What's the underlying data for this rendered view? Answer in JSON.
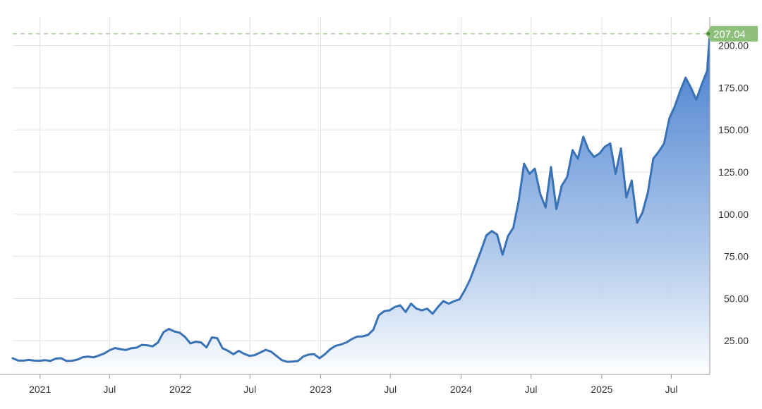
{
  "chart_data": {
    "type": "area",
    "title": "",
    "xlabel": "",
    "ylabel": "",
    "ylim": [
      5,
      217
    ],
    "y_ticks": [
      "25.00",
      "50.00",
      "75.00",
      "100.00",
      "125.00",
      "150.00",
      "175.00",
      "200.00"
    ],
    "y_tick_values": [
      25,
      50,
      75,
      100,
      125,
      150,
      175,
      200
    ],
    "x_ticks": [
      {
        "label": "2021",
        "date": "2021-01-01"
      },
      {
        "label": "Jul",
        "date": "2021-07-01"
      },
      {
        "label": "2022",
        "date": "2022-01-01"
      },
      {
        "label": "Jul",
        "date": "2022-07-01"
      },
      {
        "label": "2023",
        "date": "2023-01-01"
      },
      {
        "label": "Jul",
        "date": "2023-07-01"
      },
      {
        "label": "2024",
        "date": "2024-01-01"
      },
      {
        "label": "Jul",
        "date": "2024-07-01"
      },
      {
        "label": "2025",
        "date": "2025-01-01"
      },
      {
        "label": "Jul",
        "date": "2025-07-01"
      }
    ],
    "x_range": [
      "2020-10-22",
      "2025-10-09"
    ],
    "grid": true,
    "last_value_label": "207.04",
    "last_value": 207.04,
    "colors": {
      "line": "#3a72b6",
      "area_top": "#3f78cd",
      "area_bottom": "#ffffff",
      "marker": "#8ec07c",
      "reference_line": "#a8d49a",
      "grid": "#e3e3e3",
      "axis": "#999999",
      "tick_text": "#333333"
    },
    "series": [
      {
        "values": [
          [
            "2020-10-22",
            14.6
          ],
          [
            "2020-11-05",
            13.3
          ],
          [
            "2020-11-19",
            13.2
          ],
          [
            "2020-12-03",
            13.6
          ],
          [
            "2020-12-17",
            13.2
          ],
          [
            "2020-12-31",
            13.1
          ],
          [
            "2021-01-14",
            13.5
          ],
          [
            "2021-01-28",
            13.0
          ],
          [
            "2021-02-11",
            14.4
          ],
          [
            "2021-02-25",
            14.6
          ],
          [
            "2021-03-11",
            13.0
          ],
          [
            "2021-03-25",
            13.1
          ],
          [
            "2021-04-08",
            13.8
          ],
          [
            "2021-04-22",
            15.2
          ],
          [
            "2021-05-06",
            15.6
          ],
          [
            "2021-05-20",
            15.1
          ],
          [
            "2021-06-03",
            16.2
          ],
          [
            "2021-06-17",
            17.4
          ],
          [
            "2021-07-01",
            19.4
          ],
          [
            "2021-07-15",
            20.7
          ],
          [
            "2021-07-29",
            20.0
          ],
          [
            "2021-08-12",
            19.5
          ],
          [
            "2021-08-26",
            20.5
          ],
          [
            "2021-09-09",
            20.9
          ],
          [
            "2021-09-23",
            22.5
          ],
          [
            "2021-10-07",
            22.3
          ],
          [
            "2021-10-21",
            21.7
          ],
          [
            "2021-11-04",
            24.0
          ],
          [
            "2021-11-18",
            30.0
          ],
          [
            "2021-12-02",
            32.0
          ],
          [
            "2021-12-16",
            30.5
          ],
          [
            "2021-12-30",
            29.8
          ],
          [
            "2022-01-13",
            27.3
          ],
          [
            "2022-01-27",
            23.4
          ],
          [
            "2022-02-10",
            24.4
          ],
          [
            "2022-02-24",
            24.0
          ],
          [
            "2022-03-10",
            21.0
          ],
          [
            "2022-03-24",
            27.0
          ],
          [
            "2022-04-07",
            26.5
          ],
          [
            "2022-04-21",
            20.5
          ],
          [
            "2022-05-05",
            19.0
          ],
          [
            "2022-05-19",
            17.0
          ],
          [
            "2022-06-02",
            19.0
          ],
          [
            "2022-06-16",
            17.2
          ],
          [
            "2022-06-30",
            16.0
          ],
          [
            "2022-07-14",
            16.5
          ],
          [
            "2022-07-28",
            18.0
          ],
          [
            "2022-08-11",
            19.6
          ],
          [
            "2022-08-25",
            18.5
          ],
          [
            "2022-09-08",
            16.0
          ],
          [
            "2022-09-22",
            13.5
          ],
          [
            "2022-10-06",
            12.5
          ],
          [
            "2022-10-20",
            12.6
          ],
          [
            "2022-11-03",
            13.0
          ],
          [
            "2022-11-17",
            15.7
          ],
          [
            "2022-12-01",
            16.8
          ],
          [
            "2022-12-15",
            17.0
          ],
          [
            "2022-12-29",
            14.6
          ],
          [
            "2023-01-12",
            17.0
          ],
          [
            "2023-01-26",
            20.0
          ],
          [
            "2023-02-09",
            22.0
          ],
          [
            "2023-02-23",
            22.8
          ],
          [
            "2023-03-09",
            24.0
          ],
          [
            "2023-03-23",
            26.0
          ],
          [
            "2023-04-06",
            27.5
          ],
          [
            "2023-04-20",
            27.6
          ],
          [
            "2023-05-04",
            28.4
          ],
          [
            "2023-05-18",
            31.5
          ],
          [
            "2023-06-01",
            40.0
          ],
          [
            "2023-06-15",
            42.5
          ],
          [
            "2023-06-29",
            43.0
          ],
          [
            "2023-07-13",
            45.0
          ],
          [
            "2023-07-27",
            46.0
          ],
          [
            "2023-08-10",
            42.0
          ],
          [
            "2023-08-24",
            47.0
          ],
          [
            "2023-09-07",
            44.0
          ],
          [
            "2023-09-21",
            43.0
          ],
          [
            "2023-10-05",
            44.0
          ],
          [
            "2023-10-19",
            41.0
          ],
          [
            "2023-11-02",
            45.0
          ],
          [
            "2023-11-16",
            48.5
          ],
          [
            "2023-11-30",
            47.0
          ],
          [
            "2023-12-14",
            48.5
          ],
          [
            "2023-12-28",
            49.5
          ],
          [
            "2024-01-11",
            55.0
          ],
          [
            "2024-01-25",
            61.5
          ],
          [
            "2024-02-08",
            70.0
          ],
          [
            "2024-02-22",
            78.5
          ],
          [
            "2024-03-07",
            87.5
          ],
          [
            "2024-03-21",
            90.0
          ],
          [
            "2024-04-04",
            88.0
          ],
          [
            "2024-04-18",
            76.0
          ],
          [
            "2024-05-02",
            87.0
          ],
          [
            "2024-05-16",
            92.0
          ],
          [
            "2024-05-30",
            108.0
          ],
          [
            "2024-06-13",
            130.0
          ],
          [
            "2024-06-27",
            124.0
          ],
          [
            "2024-07-11",
            127.0
          ],
          [
            "2024-07-25",
            112.0
          ],
          [
            "2024-08-08",
            104.0
          ],
          [
            "2024-08-22",
            128.0
          ],
          [
            "2024-09-05",
            103.0
          ],
          [
            "2024-09-19",
            117.0
          ],
          [
            "2024-10-03",
            122.0
          ],
          [
            "2024-10-17",
            138.0
          ],
          [
            "2024-10-31",
            133.0
          ],
          [
            "2024-11-14",
            146.0
          ],
          [
            "2024-11-28",
            138.0
          ],
          [
            "2024-12-12",
            134.0
          ],
          [
            "2024-12-26",
            136.0
          ],
          [
            "2025-01-09",
            140.0
          ],
          [
            "2025-01-23",
            142.0
          ],
          [
            "2025-02-06",
            124.0
          ],
          [
            "2025-02-20",
            139.0
          ],
          [
            "2025-03-06",
            110.0
          ],
          [
            "2025-03-20",
            120.0
          ],
          [
            "2025-04-03",
            95.0
          ],
          [
            "2025-04-17",
            101.0
          ],
          [
            "2025-05-01",
            113.0
          ],
          [
            "2025-05-15",
            133.0
          ],
          [
            "2025-05-29",
            137.0
          ],
          [
            "2025-06-12",
            142.0
          ],
          [
            "2025-06-26",
            157.0
          ],
          [
            "2025-07-10",
            164.0
          ],
          [
            "2025-07-24",
            173.0
          ],
          [
            "2025-08-07",
            181.0
          ],
          [
            "2025-08-21",
            175.0
          ],
          [
            "2025-09-04",
            168.0
          ],
          [
            "2025-09-18",
            177.0
          ],
          [
            "2025-10-02",
            185.0
          ],
          [
            "2025-10-09",
            207.04
          ]
        ]
      }
    ]
  }
}
